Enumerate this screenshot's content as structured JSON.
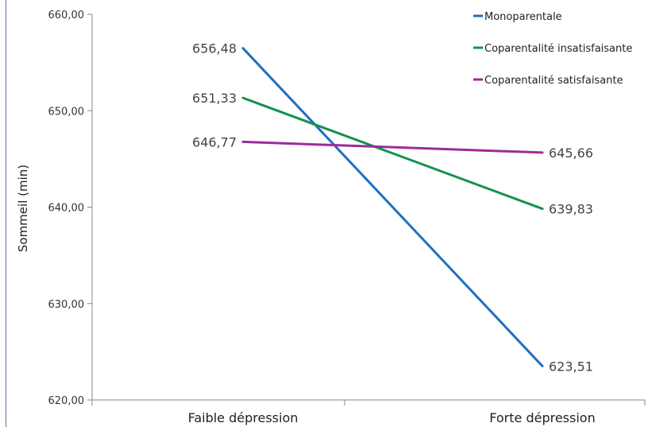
{
  "chart_data": {
    "type": "line",
    "categories": [
      "Faible dépression",
      "Forte dépression"
    ],
    "ylabel": "Sommeil (min)",
    "ylim": [
      620,
      660
    ],
    "yticks": [
      "620,00",
      "630,00",
      "640,00",
      "650,00",
      "660,00"
    ],
    "legend_position": "top-right",
    "series": [
      {
        "name": "Monoparentale",
        "values": [
          656.48,
          623.51
        ],
        "labels": [
          "656,48",
          "623,51"
        ],
        "color": "#1f6fbf"
      },
      {
        "name": "Coparentalité insatisfaisante",
        "values": [
          651.33,
          639.83
        ],
        "labels": [
          "651,33",
          "639,83"
        ],
        "color": "#12924f"
      },
      {
        "name": "Coparentalité satisfaisante",
        "values": [
          646.77,
          645.66
        ],
        "labels": [
          "646,77",
          "645,66"
        ],
        "color": "#9b2d9b"
      }
    ]
  }
}
